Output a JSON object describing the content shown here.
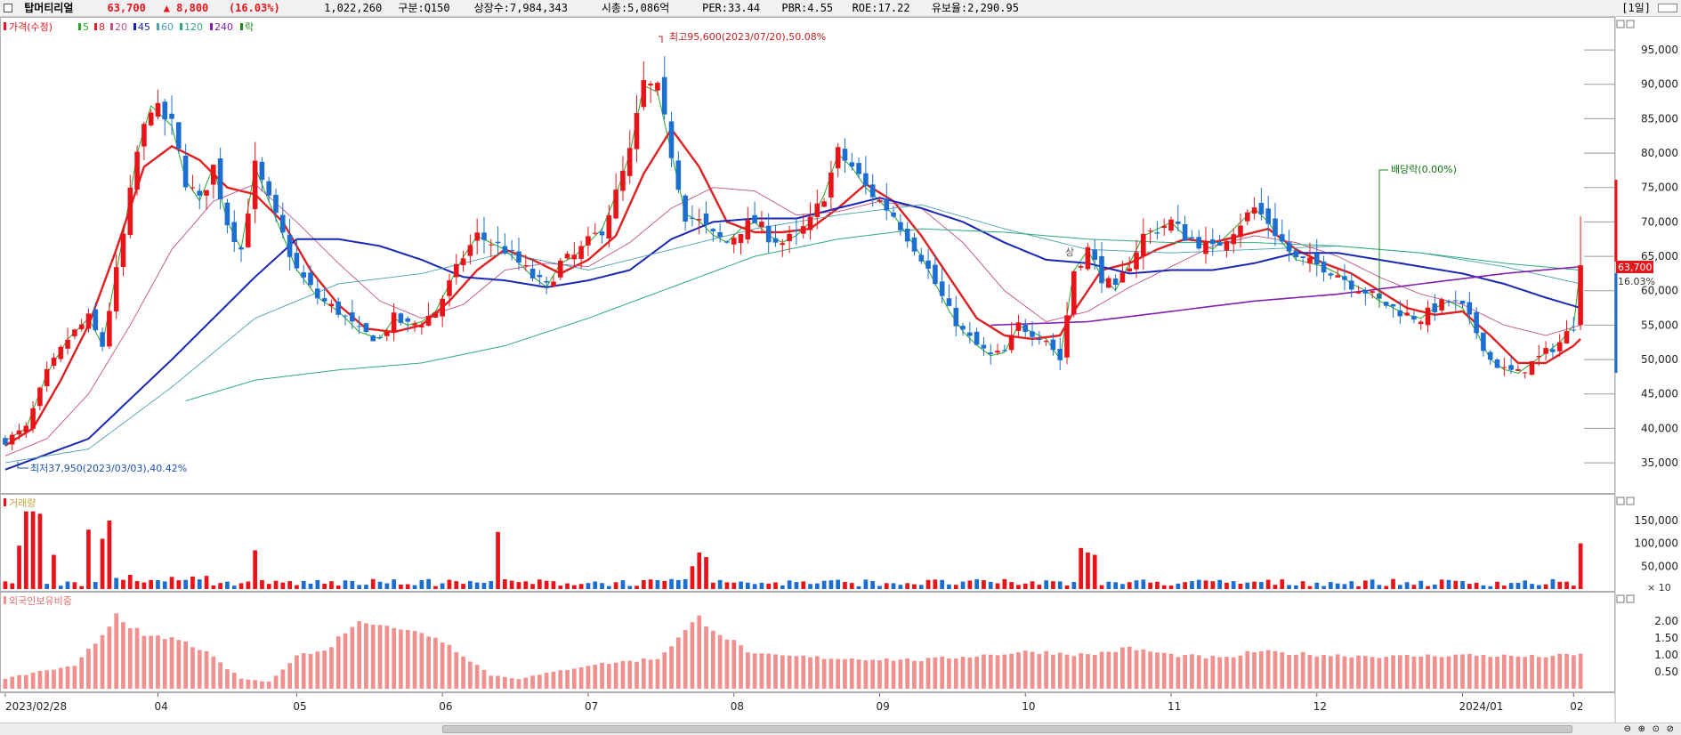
{
  "info": {
    "name": "탑머티리얼",
    "price": "63,700",
    "change": "▲ 8,800",
    "change_pct": "(16.03%)",
    "volume": "1,022,260",
    "market": "구분:Q150",
    "shares": "상장수:7,984,343",
    "mcap": "시총:5,086억",
    "per": "PER:33.44",
    "pbr": "PBR:4.55",
    "roe": "ROE:17.22",
    "reserve": "유보율:2,290.95",
    "period": "[1일]"
  },
  "colors": {
    "up": "#e8141a",
    "down": "#1c6fd1",
    "ma5": "#22aa22",
    "ma8": "#e02020",
    "ma20": "#c0508a",
    "ma45": "#1a26b5",
    "ma60": "#4aa0b0",
    "ma120": "#2eaa7a",
    "ma240": "#8020b0",
    "foreign": "#f29090"
  },
  "legend": {
    "price": "가격(수정)",
    "items": [
      {
        "label": "5",
        "color": "#22aa22"
      },
      {
        "label": "8",
        "color": "#e02020"
      },
      {
        "label": "20",
        "color": "#c0508a"
      },
      {
        "label": "45",
        "color": "#1a26b5"
      },
      {
        "label": "60",
        "color": "#4aa0b0"
      },
      {
        "label": "120",
        "color": "#2eaa7a"
      },
      {
        "label": "240",
        "color": "#8020b0"
      },
      {
        "label": "락",
        "color": "#1a8a1a"
      }
    ]
  },
  "chart_data": {
    "type": "candlestick",
    "panels": [
      "price",
      "volume",
      "foreign_ratio"
    ],
    "x_ticks": [
      "2023/02/28",
      "04",
      "05",
      "06",
      "07",
      "08",
      "09",
      "10",
      "11",
      "12",
      "2024/01",
      "02"
    ],
    "price_axis": {
      "ticks": [
        "95,000",
        "90,000",
        "85,000",
        "80,000",
        "75,000",
        "70,000",
        "65,000",
        "60,000",
        "55,000",
        "50,000",
        "45,000",
        "40,000",
        "35,000"
      ],
      "range": [
        31000,
        98500
      ]
    },
    "volume_axis": {
      "ticks": [
        "150,000",
        "100,000",
        "50,000"
      ],
      "unit": "× 10",
      "label": "거래량"
    },
    "foreign_axis": {
      "ticks": [
        "2.00",
        "1.50",
        "1.00",
        "0.50"
      ],
      "label": "외국인보유비중"
    },
    "current_price_label": "63,700",
    "current_pct_label": "16.03%",
    "annotations": {
      "high": "최고95,600(2023/07/20),50.08%",
      "low": "최저37,950(2023/03/03),40.42%",
      "dividend": "배당락(0.00%)",
      "marker": "상"
    },
    "price_path": [
      [
        0,
        38200
      ],
      [
        3,
        40000
      ],
      [
        6,
        48000
      ],
      [
        9,
        53000
      ],
      [
        12,
        56000
      ],
      [
        14,
        52000
      ],
      [
        17,
        68000
      ],
      [
        19,
        80000
      ],
      [
        21,
        87000
      ],
      [
        24,
        84000
      ],
      [
        26,
        76000
      ],
      [
        28,
        73000
      ],
      [
        30,
        78000
      ],
      [
        32,
        70000
      ],
      [
        34,
        66000
      ],
      [
        36,
        78000
      ],
      [
        38,
        73000
      ],
      [
        40,
        68000
      ],
      [
        42,
        63000
      ],
      [
        45,
        59000
      ],
      [
        48,
        57000
      ],
      [
        51,
        54000
      ],
      [
        54,
        53000
      ],
      [
        56,
        56000
      ],
      [
        58,
        55000
      ],
      [
        60,
        55500
      ],
      [
        62,
        57000
      ],
      [
        64,
        61000
      ],
      [
        66,
        65000
      ],
      [
        68,
        68000
      ],
      [
        70,
        67000
      ],
      [
        72,
        66000
      ],
      [
        74,
        64000
      ],
      [
        76,
        62000
      ],
      [
        78,
        60500
      ],
      [
        80,
        64000
      ],
      [
        82,
        65000
      ],
      [
        84,
        67000
      ],
      [
        86,
        69000
      ],
      [
        88,
        74000
      ],
      [
        90,
        80000
      ],
      [
        92,
        90000
      ],
      [
        94,
        89000
      ],
      [
        96,
        80000
      ],
      [
        98,
        71000
      ],
      [
        100,
        70000
      ],
      [
        102,
        68000
      ],
      [
        104,
        67000
      ],
      [
        106,
        69000
      ],
      [
        108,
        70000
      ],
      [
        110,
        68000
      ],
      [
        112,
        67000
      ],
      [
        114,
        68000
      ],
      [
        116,
        70000
      ],
      [
        118,
        74000
      ],
      [
        120,
        80000
      ],
      [
        122,
        78000
      ],
      [
        124,
        75000
      ],
      [
        126,
        73000
      ],
      [
        128,
        71000
      ],
      [
        130,
        68000
      ],
      [
        132,
        65000
      ],
      [
        134,
        61000
      ],
      [
        136,
        57000
      ],
      [
        138,
        54000
      ],
      [
        140,
        52000
      ],
      [
        142,
        50500
      ],
      [
        144,
        51000
      ],
      [
        146,
        55000
      ],
      [
        148,
        54000
      ],
      [
        150,
        53000
      ],
      [
        152,
        50000
      ],
      [
        154,
        63000
      ],
      [
        156,
        66000
      ],
      [
        158,
        62000
      ],
      [
        160,
        60000
      ],
      [
        162,
        64000
      ],
      [
        164,
        68000
      ],
      [
        166,
        69000
      ],
      [
        168,
        70000
      ],
      [
        170,
        68000
      ],
      [
        172,
        67000
      ],
      [
        174,
        66000
      ],
      [
        176,
        68000
      ],
      [
        178,
        70000
      ],
      [
        180,
        72000
      ],
      [
        182,
        70000
      ],
      [
        184,
        67000
      ],
      [
        186,
        64500
      ],
      [
        188,
        64000
      ],
      [
        190,
        63500
      ],
      [
        192,
        62500
      ],
      [
        194,
        61000
      ],
      [
        196,
        60000
      ],
      [
        198,
        58500
      ],
      [
        200,
        57500
      ],
      [
        202,
        56500
      ],
      [
        204,
        56000
      ],
      [
        206,
        57500
      ],
      [
        208,
        58500
      ],
      [
        210,
        57500
      ],
      [
        212,
        54000
      ],
      [
        214,
        50000
      ],
      [
        216,
        48500
      ],
      [
        218,
        48000
      ],
      [
        220,
        49500
      ],
      [
        222,
        51000
      ],
      [
        224,
        52500
      ],
      [
        226,
        55000
      ],
      [
        227,
        63700
      ]
    ],
    "ma_paths": {
      "ma8": [
        [
          0,
          37500
        ],
        [
          4,
          40000
        ],
        [
          8,
          47000
        ],
        [
          12,
          55000
        ],
        [
          16,
          66000
        ],
        [
          20,
          78000
        ],
        [
          24,
          81000
        ],
        [
          28,
          79000
        ],
        [
          32,
          75000
        ],
        [
          36,
          74000
        ],
        [
          40,
          70000
        ],
        [
          44,
          63000
        ],
        [
          48,
          58000
        ],
        [
          52,
          54500
        ],
        [
          56,
          54000
        ],
        [
          60,
          55000
        ],
        [
          64,
          58500
        ],
        [
          68,
          63000
        ],
        [
          72,
          66000
        ],
        [
          76,
          64500
        ],
        [
          80,
          62500
        ],
        [
          84,
          64500
        ],
        [
          88,
          68000
        ],
        [
          92,
          77000
        ],
        [
          96,
          83500
        ],
        [
          100,
          78000
        ],
        [
          104,
          70000
        ],
        [
          108,
          68500
        ],
        [
          112,
          68500
        ],
        [
          116,
          69000
        ],
        [
          120,
          72000
        ],
        [
          124,
          75500
        ],
        [
          128,
          73000
        ],
        [
          132,
          68000
        ],
        [
          136,
          62000
        ],
        [
          140,
          56000
        ],
        [
          144,
          53500
        ],
        [
          148,
          53000
        ],
        [
          152,
          53500
        ],
        [
          154,
          57000
        ],
        [
          158,
          63000
        ],
        [
          162,
          64000
        ],
        [
          166,
          66000
        ],
        [
          170,
          67500
        ],
        [
          174,
          67000
        ],
        [
          178,
          68000
        ],
        [
          182,
          69000
        ],
        [
          186,
          66000
        ],
        [
          190,
          64000
        ],
        [
          194,
          62500
        ],
        [
          198,
          60000
        ],
        [
          202,
          57500
        ],
        [
          206,
          56500
        ],
        [
          210,
          57000
        ],
        [
          214,
          53500
        ],
        [
          218,
          49500
        ],
        [
          222,
          49500
        ],
        [
          226,
          52000
        ],
        [
          227,
          53000
        ]
      ],
      "ma20": [
        [
          0,
          36000
        ],
        [
          6,
          38500
        ],
        [
          12,
          45000
        ],
        [
          18,
          55000
        ],
        [
          24,
          66000
        ],
        [
          30,
          73000
        ],
        [
          36,
          75500
        ],
        [
          42,
          70000
        ],
        [
          48,
          64000
        ],
        [
          54,
          58500
        ],
        [
          60,
          56000
        ],
        [
          66,
          58000
        ],
        [
          72,
          63000
        ],
        [
          78,
          64000
        ],
        [
          84,
          63500
        ],
        [
          90,
          67000
        ],
        [
          96,
          72000
        ],
        [
          102,
          75000
        ],
        [
          108,
          74500
        ],
        [
          114,
          71000
        ],
        [
          120,
          71500
        ],
        [
          126,
          73000
        ],
        [
          132,
          72000
        ],
        [
          138,
          67000
        ],
        [
          144,
          60000
        ],
        [
          150,
          55500
        ],
        [
          156,
          57000
        ],
        [
          162,
          60500
        ],
        [
          168,
          63500
        ],
        [
          174,
          66500
        ],
        [
          180,
          68000
        ],
        [
          186,
          67000
        ],
        [
          192,
          65000
        ],
        [
          198,
          62000
        ],
        [
          204,
          59500
        ],
        [
          210,
          58000
        ],
        [
          216,
          55000
        ],
        [
          222,
          53500
        ],
        [
          227,
          55000
        ]
      ],
      "ma45": [
        [
          0,
          34000
        ],
        [
          12,
          38500
        ],
        [
          24,
          50000
        ],
        [
          36,
          62000
        ],
        [
          42,
          67500
        ],
        [
          48,
          67500
        ],
        [
          54,
          66500
        ],
        [
          60,
          64500
        ],
        [
          66,
          62000
        ],
        [
          72,
          61500
        ],
        [
          78,
          60500
        ],
        [
          84,
          61500
        ],
        [
          90,
          63000
        ],
        [
          96,
          67500
        ],
        [
          102,
          70000
        ],
        [
          108,
          70500
        ],
        [
          114,
          70500
        ],
        [
          120,
          72000
        ],
        [
          126,
          73500
        ],
        [
          132,
          72000
        ],
        [
          138,
          70000
        ],
        [
          144,
          67000
        ],
        [
          150,
          64500
        ],
        [
          156,
          64000
        ],
        [
          162,
          62500
        ],
        [
          168,
          63000
        ],
        [
          174,
          63000
        ],
        [
          180,
          64000
        ],
        [
          186,
          65500
        ],
        [
          192,
          65500
        ],
        [
          198,
          64500
        ],
        [
          204,
          63500
        ],
        [
          210,
          62500
        ],
        [
          216,
          61000
        ],
        [
          222,
          59000
        ],
        [
          227,
          57500
        ]
      ],
      "ma60": [
        [
          0,
          35000
        ],
        [
          12,
          37000
        ],
        [
          24,
          46000
        ],
        [
          36,
          56000
        ],
        [
          48,
          61000
        ],
        [
          60,
          62500
        ],
        [
          72,
          65500
        ],
        [
          84,
          63000
        ],
        [
          96,
          66000
        ],
        [
          108,
          69000
        ],
        [
          120,
          71000
        ],
        [
          132,
          72500
        ],
        [
          144,
          69000
        ],
        [
          156,
          66000
        ],
        [
          168,
          65500
        ],
        [
          180,
          66000
        ],
        [
          192,
          66500
        ],
        [
          204,
          65500
        ],
        [
          216,
          63500
        ],
        [
          227,
          61000
        ]
      ],
      "ma120": [
        [
          26,
          44000
        ],
        [
          36,
          47000
        ],
        [
          48,
          48500
        ],
        [
          60,
          49500
        ],
        [
          72,
          52000
        ],
        [
          84,
          56000
        ],
        [
          96,
          60500
        ],
        [
          108,
          65000
        ],
        [
          120,
          67500
        ],
        [
          132,
          69000
        ],
        [
          144,
          68500
        ],
        [
          156,
          67500
        ],
        [
          168,
          67000
        ],
        [
          180,
          67000
        ],
        [
          192,
          66500
        ],
        [
          204,
          65500
        ],
        [
          216,
          64000
        ],
        [
          227,
          63000
        ]
      ],
      "ma240": [
        [
          142,
          55000
        ],
        [
          156,
          55500
        ],
        [
          168,
          57000
        ],
        [
          180,
          58500
        ],
        [
          192,
          59500
        ],
        [
          204,
          61000
        ],
        [
          216,
          62500
        ],
        [
          227,
          63500
        ]
      ]
    }
  }
}
